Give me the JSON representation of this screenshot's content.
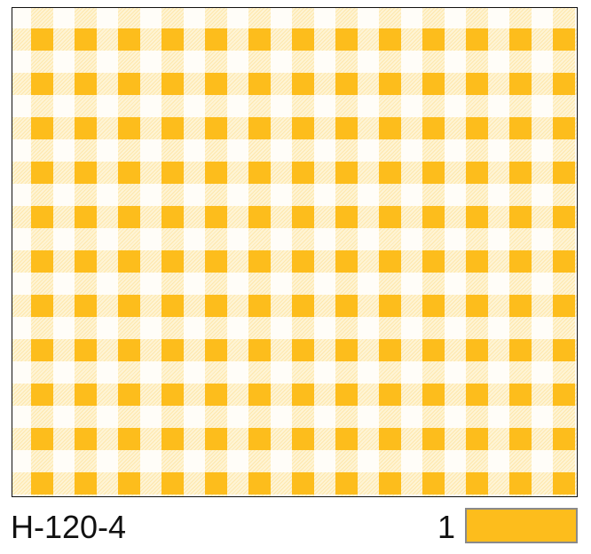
{
  "product": {
    "code": "H-120-4"
  },
  "colorway": {
    "index": "1",
    "color": "#fdbd1c"
  },
  "pattern": {
    "name": "gingham-check",
    "square_color": "#fdbd1c",
    "stripe_color": "#fde4a0",
    "background": "#ffffff",
    "columns": 13,
    "rows": 11
  }
}
